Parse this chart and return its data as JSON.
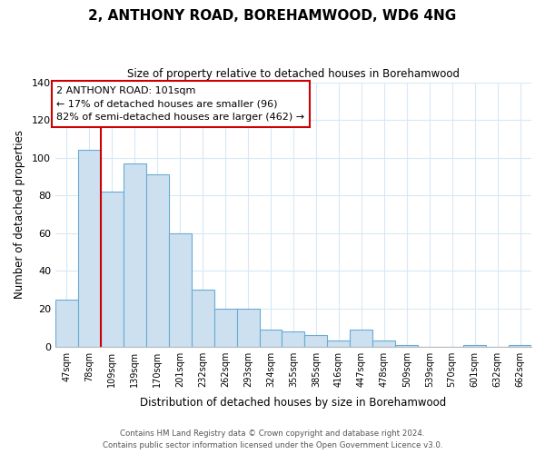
{
  "title": "2, ANTHONY ROAD, BOREHAMWOOD, WD6 4NG",
  "subtitle": "Size of property relative to detached houses in Borehamwood",
  "xlabel": "Distribution of detached houses by size in Borehamwood",
  "ylabel": "Number of detached properties",
  "bar_labels": [
    "47sqm",
    "78sqm",
    "109sqm",
    "139sqm",
    "170sqm",
    "201sqm",
    "232sqm",
    "262sqm",
    "293sqm",
    "324sqm",
    "355sqm",
    "385sqm",
    "416sqm",
    "447sqm",
    "478sqm",
    "509sqm",
    "539sqm",
    "570sqm",
    "601sqm",
    "632sqm",
    "662sqm"
  ],
  "bar_heights": [
    25,
    104,
    82,
    97,
    91,
    60,
    30,
    20,
    20,
    9,
    8,
    6,
    3,
    9,
    3,
    1,
    0,
    0,
    1,
    0,
    1
  ],
  "bar_color": "#cce0f0",
  "bar_edge_color": "#6aaad4",
  "vline_color": "#cc0000",
  "annotation_line1": "2 ANTHONY ROAD: 101sqm",
  "annotation_line2": "← 17% of detached houses are smaller (96)",
  "annotation_line3": "82% of semi-detached houses are larger (462) →",
  "annotation_box_color": "#ffffff",
  "annotation_box_edge": "#cc0000",
  "ylim": [
    0,
    140
  ],
  "yticks": [
    0,
    20,
    40,
    60,
    80,
    100,
    120,
    140
  ],
  "footer_line1": "Contains HM Land Registry data © Crown copyright and database right 2024.",
  "footer_line2": "Contains public sector information licensed under the Open Government Licence v3.0.",
  "bg_color": "#ffffff",
  "grid_color": "#d8e8f4"
}
